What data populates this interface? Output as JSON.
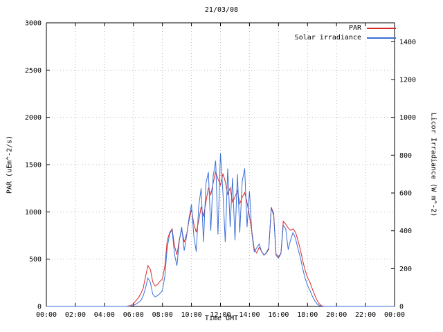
{
  "chart_data": {
    "type": "line",
    "title": "21/03/08",
    "x_axis": {
      "label": "Time GMT",
      "range": [
        0,
        24
      ],
      "tick_values": [
        0,
        2,
        4,
        6,
        8,
        10,
        12,
        14,
        16,
        18,
        20,
        22,
        24
      ],
      "tick_labels": [
        "00:00",
        "02:00",
        "04:00",
        "06:00",
        "08:00",
        "10:00",
        "12:00",
        "14:00",
        "16:00",
        "18:00",
        "20:00",
        "22:00",
        "00:00"
      ]
    },
    "y_left": {
      "label": "PAR (uEm^-2/s)",
      "range": [
        0,
        3000
      ],
      "tick_values": [
        0,
        500,
        1000,
        1500,
        2000,
        2500,
        3000
      ]
    },
    "y_right": {
      "label": "Licor Irradiance (W m^-2)",
      "range": [
        0,
        1500
      ],
      "tick_values": [
        0,
        200,
        400,
        600,
        800,
        1000,
        1200,
        1400
      ]
    },
    "grid": true,
    "legend_position": "top-right",
    "legend": [
      {
        "label": "PAR",
        "color": "#d42a2a"
      },
      {
        "label": "Solar irradiance",
        "color": "#3a6fd8"
      }
    ],
    "colors": {
      "grid": "#b8b8b8",
      "axis": "#000000"
    },
    "x": [
      0,
      5.5,
      5.67,
      5.83,
      6,
      6.17,
      6.33,
      6.5,
      6.67,
      6.83,
      7,
      7.17,
      7.33,
      7.5,
      7.67,
      7.83,
      8,
      8.17,
      8.33,
      8.5,
      8.67,
      8.83,
      9,
      9.17,
      9.33,
      9.5,
      9.67,
      9.83,
      10,
      10.17,
      10.33,
      10.5,
      10.67,
      10.83,
      11,
      11.17,
      11.33,
      11.5,
      11.67,
      11.83,
      12,
      12.17,
      12.33,
      12.5,
      12.67,
      12.83,
      13,
      13.17,
      13.33,
      13.5,
      13.67,
      13.83,
      14,
      14.17,
      14.33,
      14.5,
      14.67,
      14.83,
      15,
      15.17,
      15.33,
      15.5,
      15.67,
      15.83,
      16,
      16.17,
      16.33,
      16.5,
      16.67,
      16.83,
      17,
      17.17,
      17.33,
      17.5,
      17.67,
      17.83,
      18,
      18.17,
      18.33,
      18.5,
      18.67,
      18.83,
      19,
      19.17,
      19.33,
      19.5,
      24
    ],
    "series": [
      {
        "name": "PAR",
        "axis": "left",
        "color": "#d42a2a",
        "values": [
          0,
          0,
          5,
          10,
          30,
          60,
          90,
          130,
          190,
          310,
          430,
          390,
          260,
          215,
          235,
          265,
          290,
          430,
          700,
          780,
          820,
          640,
          545,
          710,
          815,
          680,
          765,
          905,
          1025,
          870,
          785,
          905,
          1055,
          950,
          1105,
          1255,
          1180,
          1305,
          1425,
          1350,
          1285,
          1405,
          1320,
          1185,
          1255,
          1105,
          1155,
          1225,
          1085,
          1155,
          1205,
          1100,
          955,
          785,
          605,
          565,
          625,
          585,
          545,
          565,
          605,
          1050,
          980,
          555,
          525,
          565,
          900,
          870,
          830,
          805,
          820,
          785,
          705,
          605,
          485,
          385,
          305,
          255,
          185,
          120,
          60,
          25,
          5,
          0,
          0,
          0,
          0
        ]
      },
      {
        "name": "Solar irradiance",
        "axis": "right",
        "color": "#3a6fd8",
        "values": [
          0,
          0,
          0,
          2,
          5,
          12,
          20,
          30,
          55,
          95,
          150,
          125,
          65,
          50,
          58,
          68,
          85,
          160,
          310,
          385,
          405,
          275,
          215,
          350,
          420,
          295,
          375,
          465,
          540,
          370,
          290,
          530,
          625,
          340,
          650,
          710,
          400,
          690,
          770,
          380,
          810,
          600,
          340,
          730,
          420,
          680,
          350,
          700,
          390,
          660,
          730,
          420,
          610,
          380,
          290,
          310,
          330,
          290,
          270,
          285,
          310,
          520,
          480,
          270,
          255,
          280,
          430,
          410,
          300,
          350,
          390,
          360,
          310,
          260,
          200,
          150,
          110,
          85,
          55,
          30,
          12,
          4,
          1,
          0,
          0,
          0,
          0
        ]
      }
    ]
  }
}
